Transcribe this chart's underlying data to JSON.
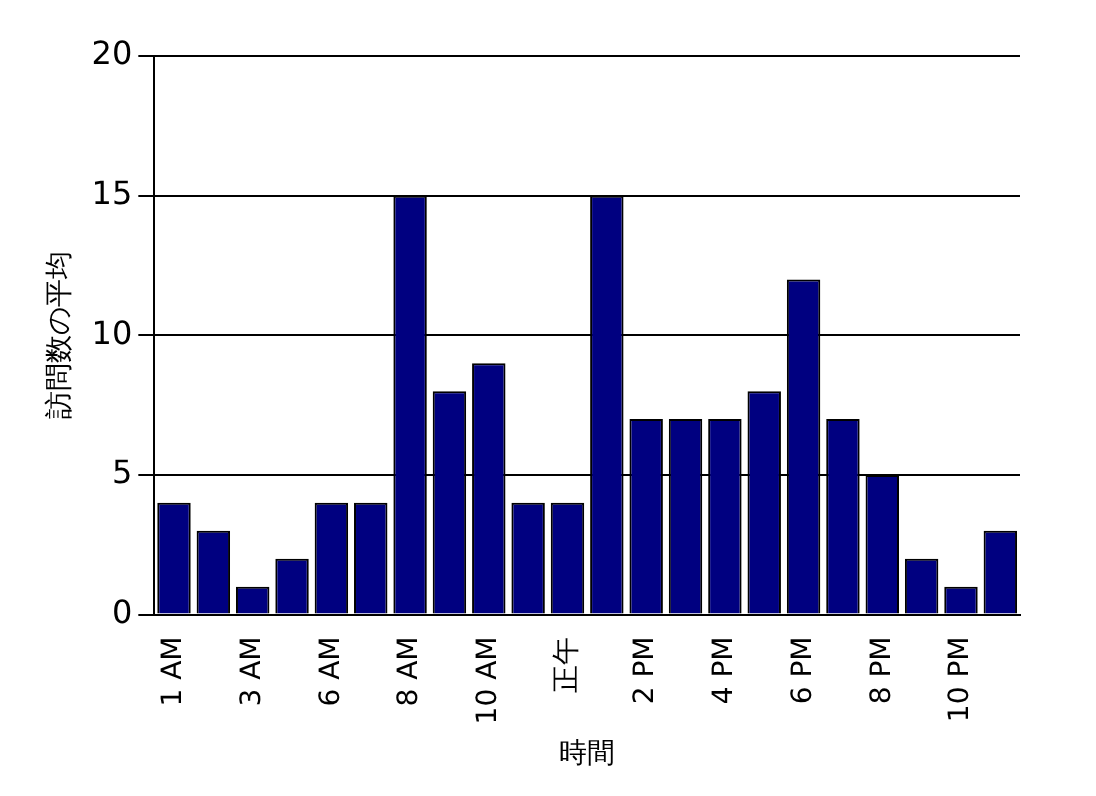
{
  "chart_data": {
    "type": "bar",
    "xlabel": "時間",
    "ylabel": "訪問数の平均",
    "categories": [
      "1 AM",
      null,
      "3 AM",
      null,
      "6 AM",
      null,
      "8 AM",
      null,
      "10 AM",
      null,
      "正午",
      null,
      "2 PM",
      null,
      "4 PM",
      null,
      "6 PM",
      null,
      "8 PM",
      null,
      "10 PM",
      null
    ],
    "values": [
      4,
      3,
      1,
      2,
      4,
      4,
      15,
      8,
      9,
      4,
      4,
      15,
      7,
      7,
      7,
      8,
      12,
      7,
      5,
      2,
      1,
      3
    ],
    "color": "#000080",
    "ylim": [
      0,
      20
    ],
    "yticks": [
      0,
      5,
      10,
      15,
      20
    ],
    "grid": "y"
  }
}
